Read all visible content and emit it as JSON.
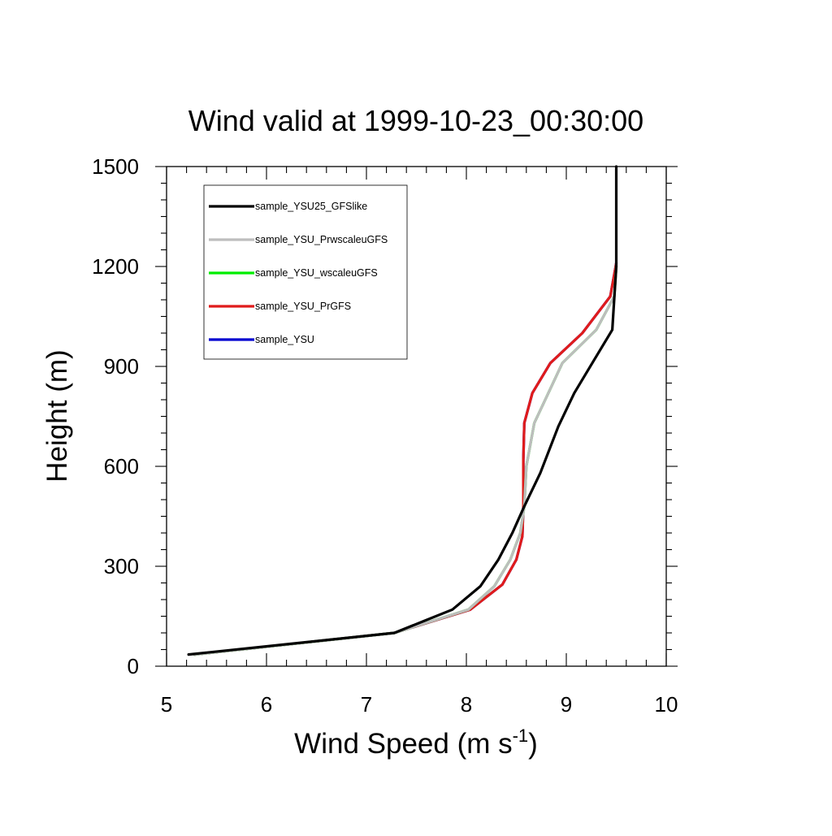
{
  "chart_data": {
    "type": "line",
    "title": "Wind valid at 1999-10-23_00:30:00",
    "xlabel": "Wind Speed (m s",
    "xlabel_sup": "-1",
    "xlabel_close": ")",
    "ylabel": "Height (m)",
    "xlim": [
      5,
      10
    ],
    "ylim": [
      0,
      1500
    ],
    "xticks": [
      "5",
      "6",
      "7",
      "8",
      "9",
      "10"
    ],
    "yticks": [
      "0",
      "300",
      "600",
      "900",
      "1200",
      "1500"
    ],
    "legend_position": "top-left",
    "series": [
      {
        "name": "sample_YSU25_GFSlike",
        "color": "#000000",
        "x": [
          5.22,
          7.28,
          7.86,
          8.14,
          8.32,
          8.46,
          8.58,
          8.74,
          8.92,
          9.08,
          9.28,
          9.46,
          9.5,
          9.5
        ],
        "y": [
          35,
          100,
          170,
          240,
          320,
          400,
          480,
          580,
          720,
          820,
          920,
          1010,
          1200,
          1500
        ]
      },
      {
        "name": "sample_YSU_PrwscaleuGFS",
        "color": "#bdbdbd",
        "x": [
          5.28,
          7.28,
          8.02,
          8.28,
          8.44,
          8.54,
          8.58,
          8.6,
          8.68,
          8.82,
          8.96,
          9.3,
          9.48,
          9.5
        ],
        "y": [
          35,
          100,
          170,
          240,
          320,
          400,
          480,
          600,
          730,
          820,
          910,
          1010,
          1110,
          1200
        ]
      },
      {
        "name": "sample_YSU_wscaleuGFS",
        "color": "#00ee00",
        "x": [
          5.28,
          7.28,
          8.02,
          8.28,
          8.44,
          8.54,
          8.58,
          8.6,
          8.68,
          8.82,
          8.96,
          9.3,
          9.48,
          9.5
        ],
        "y": [
          35,
          100,
          170,
          240,
          320,
          400,
          480,
          600,
          730,
          820,
          910,
          1010,
          1110,
          1200
        ]
      },
      {
        "name": "sample_YSU_PrGFS",
        "color": "#e01b1b",
        "x": [
          5.28,
          7.28,
          8.04,
          8.36,
          8.5,
          8.56,
          8.57,
          8.57,
          8.58,
          8.66,
          8.84,
          9.16,
          9.44,
          9.5
        ],
        "y": [
          35,
          100,
          170,
          245,
          320,
          390,
          480,
          620,
          730,
          820,
          910,
          1000,
          1110,
          1210
        ]
      },
      {
        "name": "sample_YSU",
        "color": "#0000d0",
        "x": [
          5.28,
          7.28,
          8.04,
          8.36,
          8.5,
          8.56,
          8.57,
          8.57,
          8.58,
          8.66,
          8.84,
          9.16,
          9.44,
          9.5
        ],
        "y": [
          35,
          100,
          170,
          245,
          320,
          390,
          480,
          620,
          730,
          820,
          910,
          1000,
          1110,
          1210
        ]
      }
    ]
  }
}
